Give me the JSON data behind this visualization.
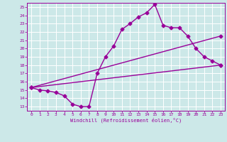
{
  "title": "",
  "xlabel": "Windchill (Refroidissement éolien,°C)",
  "ylabel": "",
  "bg_color": "#cce8e8",
  "grid_color": "#ffffff",
  "line_color": "#990099",
  "xlim": [
    -0.5,
    23.5
  ],
  "ylim": [
    12.5,
    25.5
  ],
  "xticks": [
    0,
    1,
    2,
    3,
    4,
    5,
    6,
    7,
    8,
    9,
    10,
    11,
    12,
    13,
    14,
    15,
    16,
    17,
    18,
    19,
    20,
    21,
    22,
    23
  ],
  "yticks": [
    13,
    14,
    15,
    16,
    17,
    18,
    19,
    20,
    21,
    22,
    23,
    24,
    25
  ],
  "line1_x": [
    0,
    1,
    2,
    3,
    4,
    5,
    6,
    7,
    8,
    9,
    10,
    11,
    12,
    13,
    14,
    15,
    16,
    17,
    18,
    19,
    20,
    21,
    22,
    23
  ],
  "line1_y": [
    15.3,
    15.0,
    14.9,
    14.7,
    14.3,
    13.3,
    13.0,
    13.0,
    17.0,
    19.0,
    20.3,
    22.3,
    23.0,
    23.8,
    24.3,
    25.3,
    22.8,
    22.5,
    22.5,
    21.5,
    20.0,
    19.0,
    18.5,
    18.0
  ],
  "line2_x": [
    0,
    23
  ],
  "line2_y": [
    15.3,
    18.0
  ],
  "line3_x": [
    0,
    23
  ],
  "line3_y": [
    15.3,
    21.5
  ],
  "marker": "D",
  "marker_size": 2.5,
  "line_width": 1.0
}
